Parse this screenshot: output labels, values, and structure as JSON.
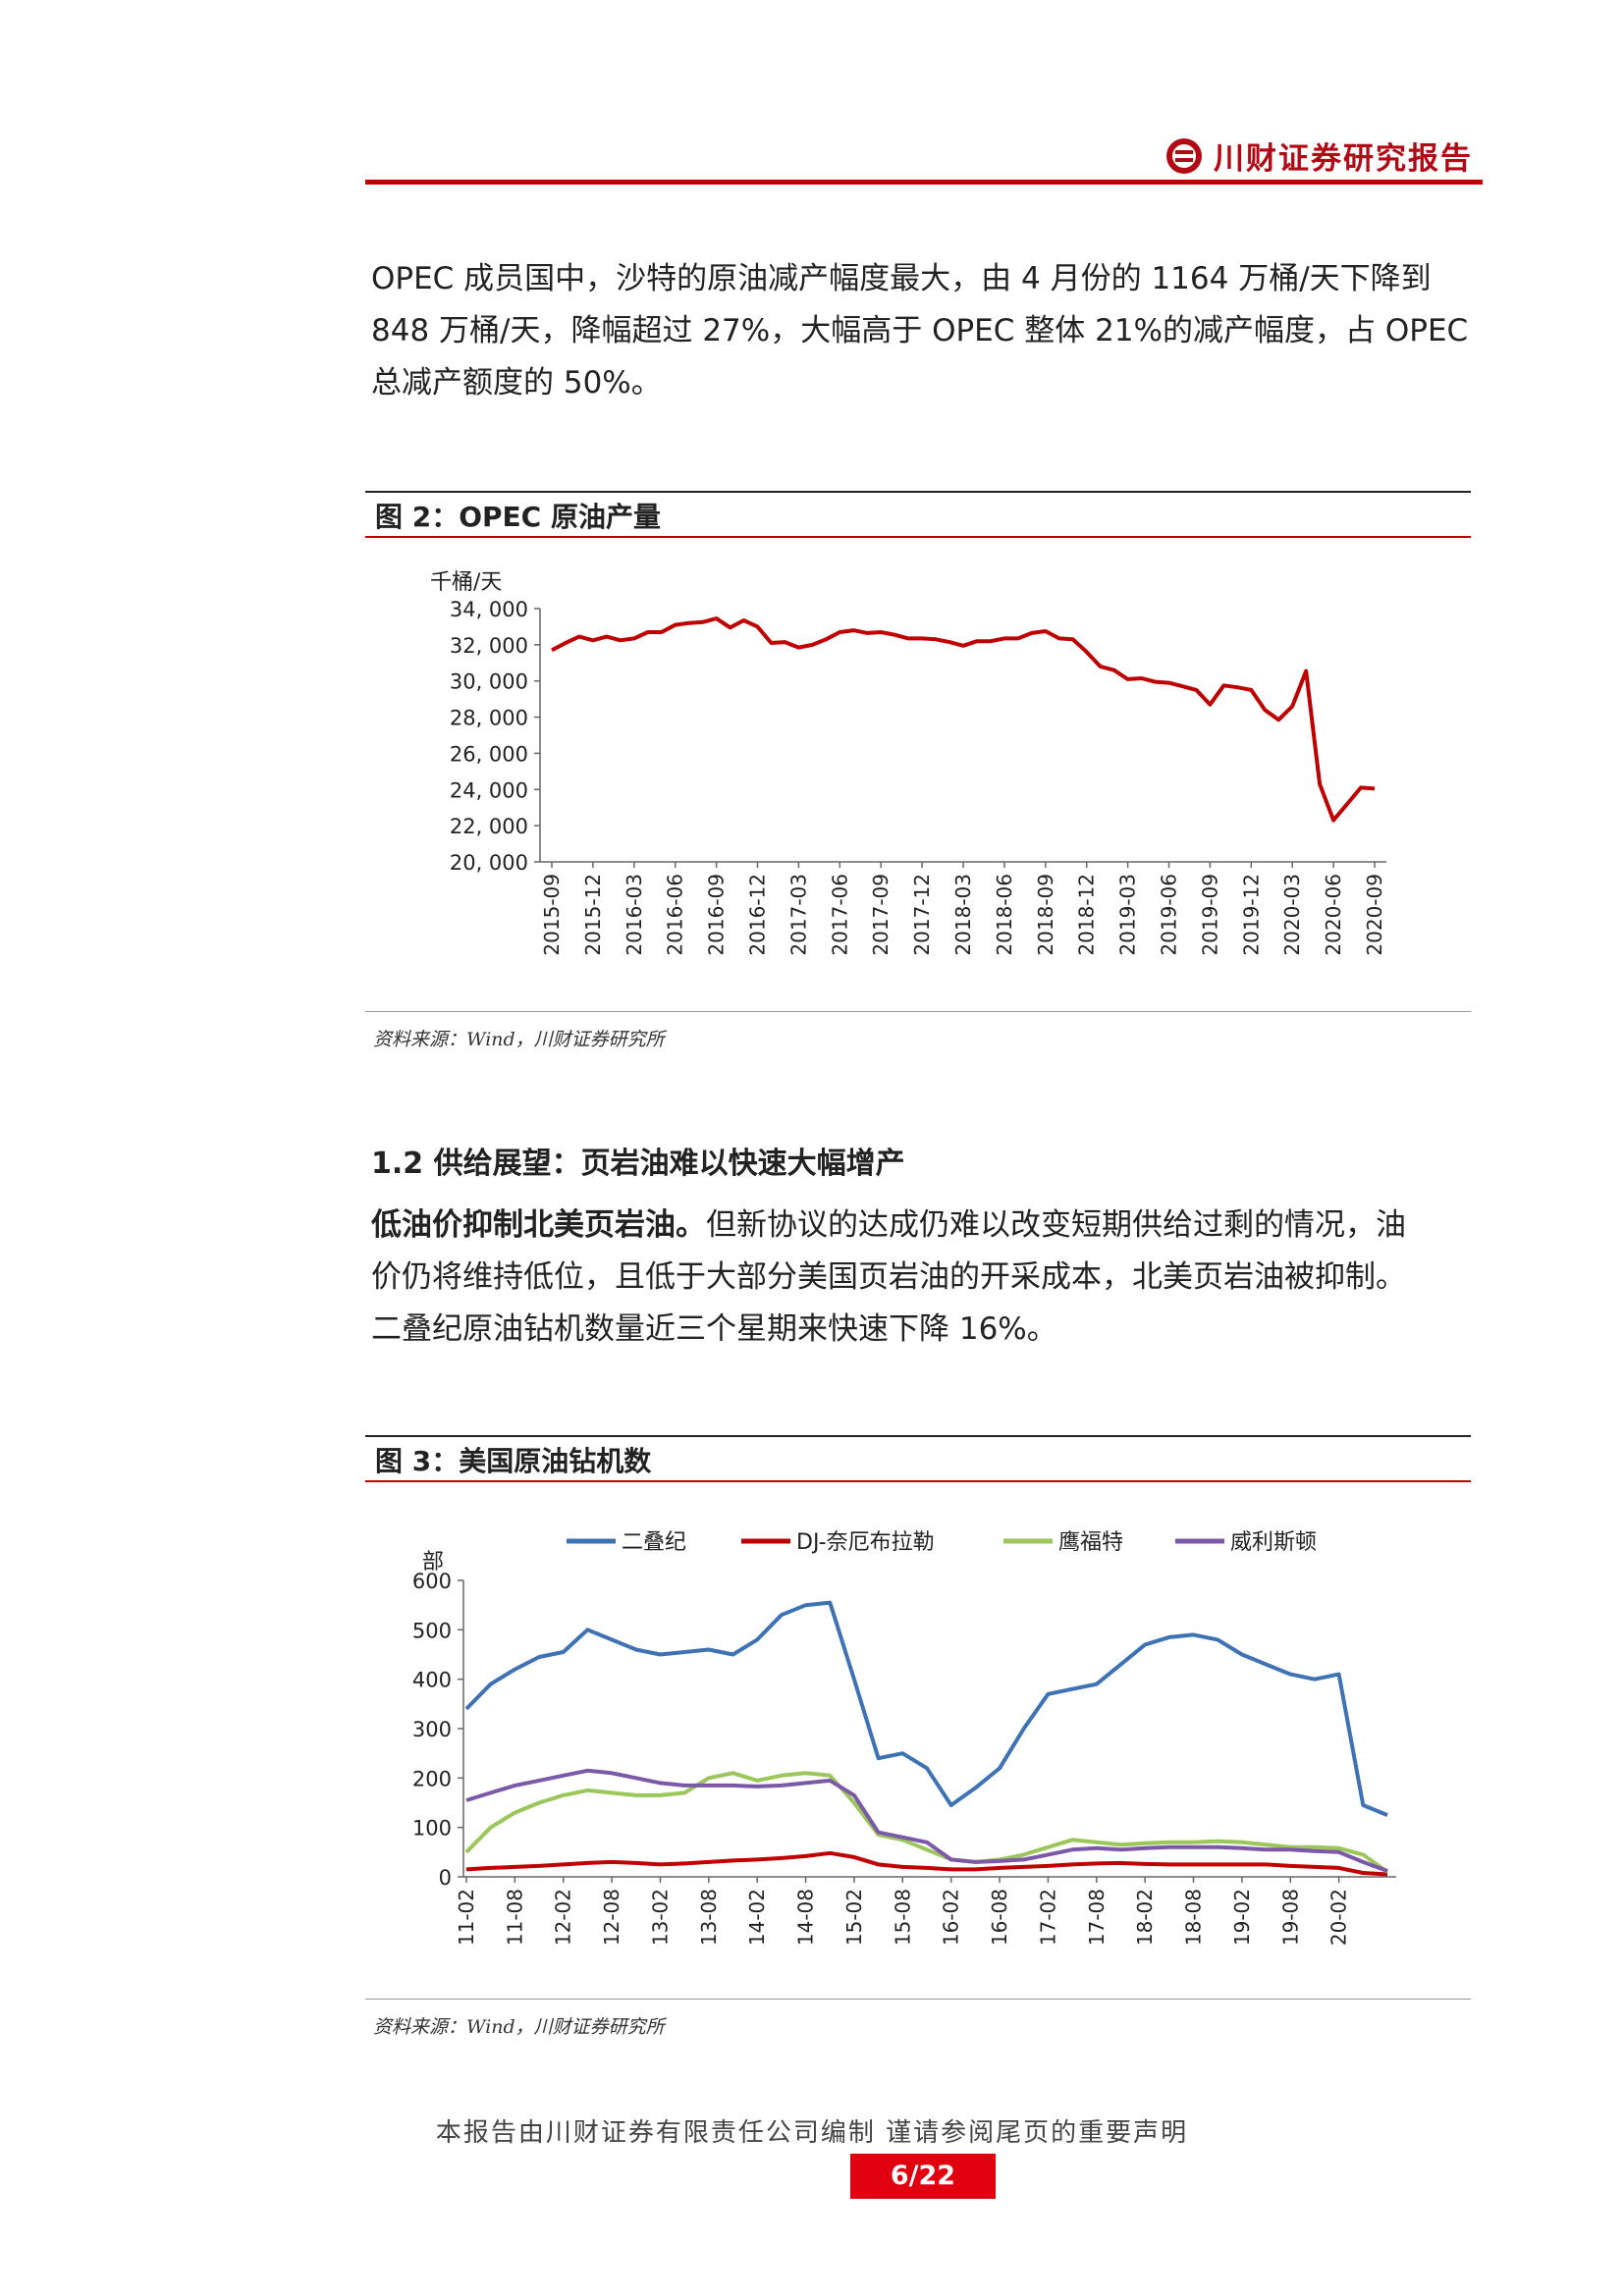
{
  "header": {
    "title": "川财证券研究报告",
    "accent": "#c00000"
  },
  "intro": {
    "lines": [
      "OPEC 成员国中，沙特的原油减产幅度最大，由 4 月份的 1164 万桶/天下降到",
      "848 万桶/天，降幅超过 27%，大幅高于 OPEC 整体 21%的减产幅度，占 OPEC",
      "总减产额度的 50%。"
    ]
  },
  "figure2": {
    "title": "图 2：OPEC 原油产量",
    "source": "资料来源：Wind，川财证券研究所",
    "chart_data": {
      "type": "line",
      "ylabel": "千桶/天",
      "ylim": [
        20000,
        34000
      ],
      "yticks": [
        "34, 000",
        "32, 000",
        "30, 000",
        "28, 000",
        "26, 000",
        "24, 000",
        "22, 000",
        "20, 000"
      ],
      "xticks": [
        "2015-09",
        "2015-12",
        "2016-03",
        "2016-06",
        "2016-09",
        "2016-12",
        "2017-03",
        "2017-06",
        "2017-09",
        "2017-12",
        "2018-03",
        "2018-06",
        "2018-09",
        "2018-12",
        "2019-03",
        "2019-06",
        "2019-09",
        "2019-12",
        "2020-03",
        "2020-06",
        "2020-09"
      ],
      "color": "#c00000",
      "series": [
        {
          "values": [
            31700,
            32100,
            32450,
            32250,
            32450,
            32250,
            32350,
            32700,
            32700,
            33100,
            33200,
            33250,
            33450,
            32950,
            33350,
            33000,
            32100,
            32150,
            31850,
            32000,
            32300,
            32700,
            32800,
            32650,
            32700,
            32550,
            32350,
            32350,
            32300,
            32150,
            31950,
            32200,
            32200,
            32350,
            32350,
            32650,
            32750,
            32350,
            32300,
            31600,
            30800,
            30600,
            30100,
            30150,
            29950,
            29900,
            29700,
            29500,
            28700,
            29750,
            29650,
            29500,
            28400,
            27850,
            28600,
            30550,
            24300,
            22300,
            23200,
            24100,
            24050
          ]
        }
      ]
    }
  },
  "section": {
    "title": "1.2 供给展望：页岩油难以快速大幅增产",
    "lead": "低油价抑制北美页岩油。",
    "line1_rest": "但新协议的达成仍难以改变短期供给过剩的情况，油",
    "line2": "价仍将维持低位，且低于大部分美国页岩油的开采成本，北美页岩油被抑制。",
    "line3": "二叠纪原油钻机数量近三个星期来快速下降 16%。"
  },
  "figure3": {
    "title": "图 3：美国原油钻机数",
    "source": "资料来源：Wind，川财证券研究所",
    "chart_data": {
      "type": "line",
      "ylabel": "部",
      "ylim": [
        0,
        600
      ],
      "yticks": [
        "600",
        "500",
        "400",
        "300",
        "200",
        "100",
        "0"
      ],
      "xticks": [
        "11-02",
        "11-08",
        "12-02",
        "12-08",
        "13-02",
        "13-08",
        "14-02",
        "14-08",
        "15-02",
        "15-08",
        "16-02",
        "16-08",
        "17-02",
        "17-08",
        "18-02",
        "18-08",
        "19-02",
        "19-08",
        "20-02"
      ],
      "legend": "top",
      "x_dates": [
        "11-02",
        "11-05",
        "11-08",
        "11-11",
        "12-02",
        "12-05",
        "12-08",
        "12-11",
        "13-02",
        "13-05",
        "13-08",
        "13-11",
        "14-02",
        "14-05",
        "14-08",
        "14-11",
        "15-02",
        "15-05",
        "15-08",
        "15-11",
        "16-02",
        "16-05",
        "16-08",
        "16-11",
        "17-02",
        "17-05",
        "17-08",
        "17-11",
        "18-02",
        "18-05",
        "18-08",
        "18-11",
        "19-02",
        "19-05",
        "19-08",
        "19-11",
        "20-02",
        "20-04",
        "20-06"
      ],
      "series": [
        {
          "name": "二叠纪",
          "color": "#3d72b5",
          "values": [
            340,
            390,
            420,
            445,
            455,
            500,
            480,
            460,
            450,
            455,
            460,
            450,
            480,
            530,
            550,
            555,
            400,
            240,
            250,
            220,
            145,
            180,
            220,
            300,
            370,
            380,
            390,
            430,
            470,
            485,
            490,
            480,
            450,
            430,
            410,
            400,
            410,
            145,
            125
          ]
        },
        {
          "name": "DJ-奈厄布拉勒",
          "color": "#c00000",
          "values": [
            15,
            18,
            20,
            22,
            25,
            28,
            30,
            28,
            25,
            27,
            30,
            33,
            35,
            38,
            42,
            48,
            40,
            25,
            20,
            18,
            15,
            15,
            18,
            20,
            22,
            25,
            27,
            28,
            26,
            25,
            25,
            25,
            25,
            25,
            22,
            20,
            18,
            8,
            5
          ]
        },
        {
          "name": "鹰福特",
          "color": "#9bc65a",
          "values": [
            50,
            100,
            130,
            150,
            165,
            175,
            170,
            165,
            165,
            170,
            200,
            210,
            195,
            205,
            210,
            205,
            150,
            85,
            75,
            55,
            35,
            30,
            35,
            45,
            60,
            75,
            70,
            65,
            68,
            70,
            70,
            72,
            70,
            65,
            60,
            60,
            58,
            45,
            10
          ]
        },
        {
          "name": "威利斯顿",
          "color": "#7b59a8",
          "values": [
            155,
            170,
            185,
            195,
            205,
            215,
            210,
            200,
            190,
            185,
            185,
            185,
            183,
            185,
            190,
            195,
            165,
            90,
            80,
            70,
            35,
            30,
            32,
            35,
            45,
            55,
            58,
            55,
            58,
            60,
            60,
            60,
            58,
            55,
            55,
            52,
            50,
            30,
            12
          ]
        }
      ]
    }
  },
  "footer": {
    "disclaimer": "本报告由川财证券有限责任公司编制 谨请参阅尾页的重要声明",
    "page": "6/22"
  }
}
